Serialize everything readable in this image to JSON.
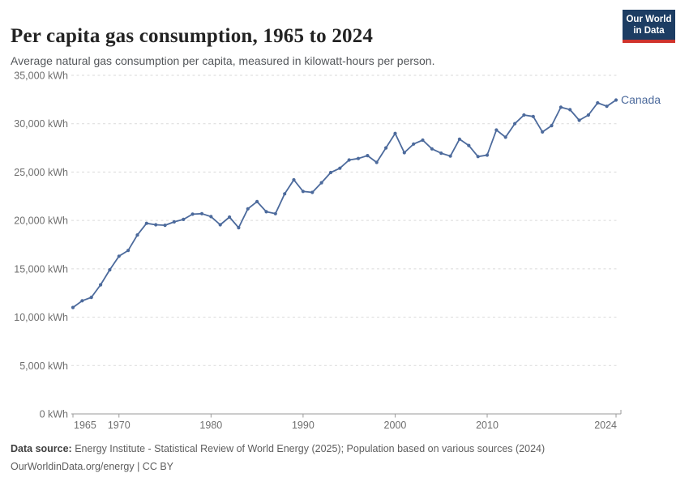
{
  "header": {
    "title": "Per capita gas consumption, 1965 to 2024",
    "subtitle": "Average natural gas consumption per capita, measured in kilowatt-hours per person.",
    "logo": {
      "line1": "Our World",
      "line2": "in Data",
      "bg_color": "#1d3d63",
      "accent_color": "#d0342c"
    }
  },
  "chart_data": {
    "type": "line",
    "title": "Per capita gas consumption, 1965 to 2024",
    "xlabel": "",
    "ylabel": "kWh per person",
    "xlim": [
      1965,
      2024
    ],
    "ylim": [
      0,
      35000
    ],
    "grid": "horizontal-dashed",
    "legend_position": "end-of-line",
    "x_ticks": [
      {
        "value": 1965,
        "label": "1965"
      },
      {
        "value": 1970,
        "label": "1970"
      },
      {
        "value": 1980,
        "label": "1980"
      },
      {
        "value": 1990,
        "label": "1990"
      },
      {
        "value": 2000,
        "label": "2000"
      },
      {
        "value": 2010,
        "label": "2010"
      },
      {
        "value": 2024,
        "label": "2024"
      }
    ],
    "y_ticks": [
      {
        "value": 0,
        "label": "0 kWh"
      },
      {
        "value": 5000,
        "label": "5,000 kWh"
      },
      {
        "value": 10000,
        "label": "10,000 kWh"
      },
      {
        "value": 15000,
        "label": "15,000 kWh"
      },
      {
        "value": 20000,
        "label": "20,000 kWh"
      },
      {
        "value": 25000,
        "label": "25,000 kWh"
      },
      {
        "value": 30000,
        "label": "30,000 kWh"
      },
      {
        "value": 35000,
        "label": "35,000 kWh"
      }
    ],
    "series": [
      {
        "name": "Canada",
        "color": "#4C6A9C",
        "x": [
          1965,
          1966,
          1967,
          1968,
          1969,
          1970,
          1971,
          1972,
          1973,
          1974,
          1975,
          1976,
          1977,
          1978,
          1979,
          1980,
          1981,
          1982,
          1983,
          1984,
          1985,
          1986,
          1987,
          1988,
          1989,
          1990,
          1991,
          1992,
          1993,
          1994,
          1995,
          1996,
          1997,
          1998,
          1999,
          2000,
          2001,
          2002,
          2003,
          2004,
          2005,
          2006,
          2007,
          2008,
          2009,
          2010,
          2011,
          2012,
          2013,
          2014,
          2015,
          2016,
          2017,
          2018,
          2019,
          2020,
          2021,
          2022,
          2023,
          2024
        ],
        "values": [
          11000,
          11700,
          12050,
          13350,
          14900,
          16300,
          16900,
          18500,
          19700,
          19550,
          19500,
          19850,
          20100,
          20650,
          20700,
          20400,
          19550,
          20350,
          19250,
          21200,
          21950,
          20900,
          20700,
          22750,
          24200,
          23000,
          22900,
          23900,
          24950,
          25400,
          26250,
          26400,
          26700,
          26000,
          27500,
          29000,
          27000,
          27900,
          28300,
          27400,
          26950,
          26650,
          28400,
          27750,
          26600,
          26750,
          29350,
          28600,
          30000,
          30900,
          30750,
          29150,
          29800,
          31700,
          31450,
          30350,
          30900,
          32150,
          31800,
          32450
        ]
      }
    ]
  },
  "footer": {
    "source_label": "Data source:",
    "source_text": " Energy Institute - Statistical Review of World Energy (2025); Population based on various sources (2024)",
    "attribution": "OurWorldinData.org/energy | CC BY"
  }
}
